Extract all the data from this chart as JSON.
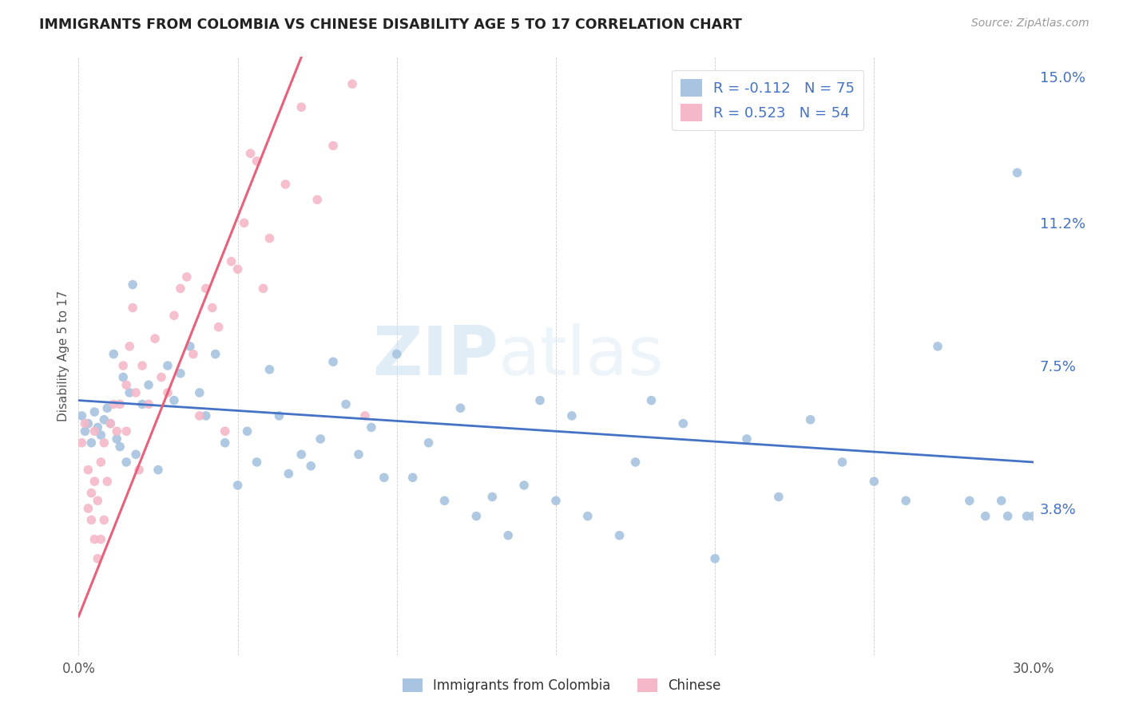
{
  "title": "IMMIGRANTS FROM COLOMBIA VS CHINESE DISABILITY AGE 5 TO 17 CORRELATION CHART",
  "source": "Source: ZipAtlas.com",
  "ylabel": "Disability Age 5 to 17",
  "xlim": [
    0.0,
    0.3
  ],
  "ylim": [
    0.0,
    0.155
  ],
  "ytick_positions": [
    0.038,
    0.075,
    0.112,
    0.15
  ],
  "ytick_labels": [
    "3.8%",
    "7.5%",
    "11.2%",
    "15.0%"
  ],
  "colombia_color": "#a8c4e0",
  "chinese_color": "#f4b8c8",
  "colombia_line_color": "#4472c4",
  "chinese_line_color": "#e8607a",
  "colombia_R": -0.112,
  "colombia_N": 75,
  "chinese_R": 0.523,
  "chinese_N": 54,
  "legend_label_colombia": "Immigrants from Colombia",
  "legend_label_chinese": "Chinese",
  "watermark_zip": "ZIP",
  "watermark_atlas": "atlas",
  "background_color": "#ffffff",
  "colombia_scatter_x": [
    0.001,
    0.002,
    0.003,
    0.004,
    0.005,
    0.006,
    0.007,
    0.008,
    0.009,
    0.01,
    0.011,
    0.012,
    0.013,
    0.014,
    0.015,
    0.016,
    0.017,
    0.018,
    0.02,
    0.022,
    0.025,
    0.028,
    0.03,
    0.032,
    0.035,
    0.038,
    0.04,
    0.043,
    0.046,
    0.05,
    0.053,
    0.056,
    0.06,
    0.063,
    0.066,
    0.07,
    0.073,
    0.076,
    0.08,
    0.084,
    0.088,
    0.092,
    0.096,
    0.1,
    0.105,
    0.11,
    0.115,
    0.12,
    0.125,
    0.13,
    0.135,
    0.14,
    0.145,
    0.15,
    0.155,
    0.16,
    0.17,
    0.175,
    0.18,
    0.19,
    0.2,
    0.21,
    0.22,
    0.23,
    0.24,
    0.25,
    0.26,
    0.27,
    0.28,
    0.285,
    0.29,
    0.292,
    0.295,
    0.298,
    0.3
  ],
  "colombia_scatter_y": [
    0.062,
    0.058,
    0.06,
    0.055,
    0.063,
    0.059,
    0.057,
    0.061,
    0.064,
    0.06,
    0.078,
    0.056,
    0.054,
    0.072,
    0.05,
    0.068,
    0.096,
    0.052,
    0.065,
    0.07,
    0.048,
    0.075,
    0.066,
    0.073,
    0.08,
    0.068,
    0.062,
    0.078,
    0.055,
    0.044,
    0.058,
    0.05,
    0.074,
    0.062,
    0.047,
    0.052,
    0.049,
    0.056,
    0.076,
    0.065,
    0.052,
    0.059,
    0.046,
    0.078,
    0.046,
    0.055,
    0.04,
    0.064,
    0.036,
    0.041,
    0.031,
    0.044,
    0.066,
    0.04,
    0.062,
    0.036,
    0.031,
    0.05,
    0.066,
    0.06,
    0.025,
    0.056,
    0.041,
    0.061,
    0.05,
    0.045,
    0.04,
    0.08,
    0.04,
    0.036,
    0.04,
    0.036,
    0.125,
    0.036,
    0.036
  ],
  "chinese_scatter_x": [
    0.001,
    0.002,
    0.003,
    0.003,
    0.004,
    0.004,
    0.005,
    0.005,
    0.005,
    0.006,
    0.006,
    0.007,
    0.007,
    0.008,
    0.008,
    0.009,
    0.01,
    0.011,
    0.012,
    0.013,
    0.014,
    0.015,
    0.015,
    0.016,
    0.017,
    0.018,
    0.019,
    0.02,
    0.022,
    0.024,
    0.026,
    0.028,
    0.03,
    0.032,
    0.034,
    0.036,
    0.038,
    0.04,
    0.042,
    0.044,
    0.046,
    0.048,
    0.05,
    0.052,
    0.054,
    0.056,
    0.058,
    0.06,
    0.065,
    0.07,
    0.075,
    0.08,
    0.086,
    0.09
  ],
  "chinese_scatter_y": [
    0.055,
    0.06,
    0.048,
    0.038,
    0.042,
    0.035,
    0.045,
    0.058,
    0.03,
    0.025,
    0.04,
    0.05,
    0.03,
    0.055,
    0.035,
    0.045,
    0.06,
    0.065,
    0.058,
    0.065,
    0.075,
    0.07,
    0.058,
    0.08,
    0.09,
    0.068,
    0.048,
    0.075,
    0.065,
    0.082,
    0.072,
    0.068,
    0.088,
    0.095,
    0.098,
    0.078,
    0.062,
    0.095,
    0.09,
    0.085,
    0.058,
    0.102,
    0.1,
    0.112,
    0.13,
    0.128,
    0.095,
    0.108,
    0.122,
    0.142,
    0.118,
    0.132,
    0.148,
    0.062
  ],
  "chinese_line_x": [
    0.0,
    0.07
  ],
  "chinese_line_y": [
    0.01,
    0.155
  ],
  "colombia_line_x": [
    0.0,
    0.3
  ],
  "colombia_line_y": [
    0.066,
    0.05
  ]
}
